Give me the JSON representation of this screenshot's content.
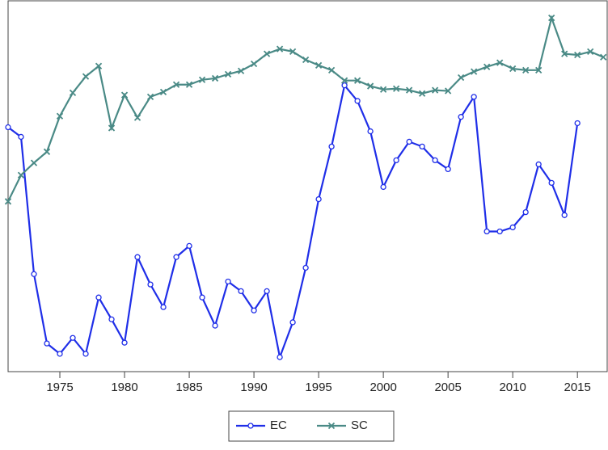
{
  "chart_data": {
    "type": "line",
    "x": [
      1971,
      1972,
      1973,
      1974,
      1975,
      1976,
      1977,
      1978,
      1979,
      1980,
      1981,
      1982,
      1983,
      1984,
      1985,
      1986,
      1987,
      1988,
      1989,
      1990,
      1991,
      1992,
      1993,
      1994,
      1995,
      1996,
      1997,
      1998,
      1999,
      2000,
      2001,
      2002,
      2003,
      2004,
      2005,
      2006,
      2007,
      2008,
      2009,
      2010,
      2011,
      2012,
      2013,
      2014,
      2015,
      2016,
      2017
    ],
    "series": [
      {
        "name": "EC",
        "color": "#1f2ee8",
        "marker": "circle",
        "values": [
          65.9,
          63.3,
          26.3,
          7.6,
          4.8,
          9.1,
          4.8,
          20.0,
          14.1,
          7.8,
          30.9,
          23.5,
          17.4,
          30.9,
          33.9,
          20.0,
          12.4,
          24.3,
          21.7,
          16.5,
          21.7,
          3.9,
          13.3,
          28.0,
          46.5,
          60.7,
          77.2,
          73.0,
          64.8,
          49.8,
          57.0,
          62.0,
          60.7,
          57.0,
          54.6,
          68.7,
          74.1,
          37.8,
          37.8,
          38.9,
          43.0,
          55.9,
          50.9,
          42.2,
          67.0,
          null,
          null
        ]
      },
      {
        "name": "SC",
        "color": "#4a8a86",
        "marker": "x",
        "values": [
          45.9,
          53.0,
          56.3,
          59.3,
          68.9,
          75.2,
          79.6,
          82.4,
          65.7,
          74.6,
          68.5,
          74.1,
          75.4,
          77.4,
          77.4,
          78.7,
          79.1,
          80.2,
          81.1,
          83.0,
          85.7,
          87.0,
          86.3,
          84.1,
          82.6,
          81.3,
          78.5,
          78.5,
          77.0,
          76.1,
          76.3,
          75.9,
          75.0,
          75.9,
          75.7,
          79.3,
          80.9,
          82.2,
          83.3,
          81.7,
          81.3,
          81.3,
          95.4,
          85.7,
          85.4,
          86.3,
          84.8
        ]
      }
    ],
    "xlim": [
      1971,
      2017.3
    ],
    "xticks": [
      1975,
      1980,
      1985,
      1990,
      1995,
      2000,
      2005,
      2010,
      2015
    ],
    "ylim": [
      0,
      100
    ],
    "legend": "bottom"
  }
}
